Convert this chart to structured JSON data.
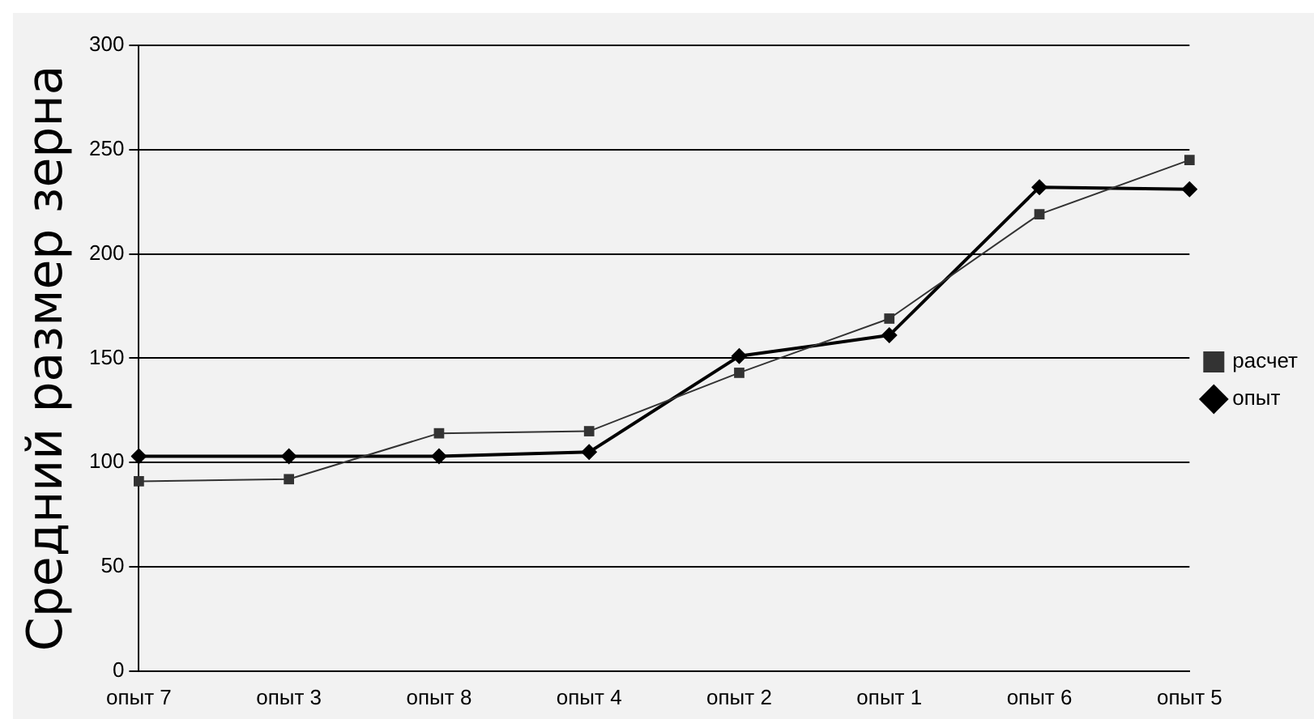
{
  "chart_data": {
    "type": "line",
    "ylabel": "Средний размер зерна",
    "categories": [
      "опыт 7",
      "опыт 3",
      "опыт 8",
      "опыт 4",
      "опыт 2",
      "опыт 1",
      "опыт 6",
      "опыт 5"
    ],
    "series": [
      {
        "name": "расчет",
        "color": "#333333",
        "marker": "square",
        "values": [
          91,
          92,
          114,
          115,
          143,
          169,
          219,
          245
        ]
      },
      {
        "name": "опыт",
        "color": "#000000",
        "marker": "diamond",
        "values": [
          103,
          103,
          103,
          105,
          151,
          161,
          232,
          231
        ]
      }
    ],
    "ylim": [
      0,
      300
    ],
    "yticks": [
      0,
      50,
      100,
      150,
      200,
      250,
      300
    ],
    "grid": "y",
    "legend": "right"
  }
}
